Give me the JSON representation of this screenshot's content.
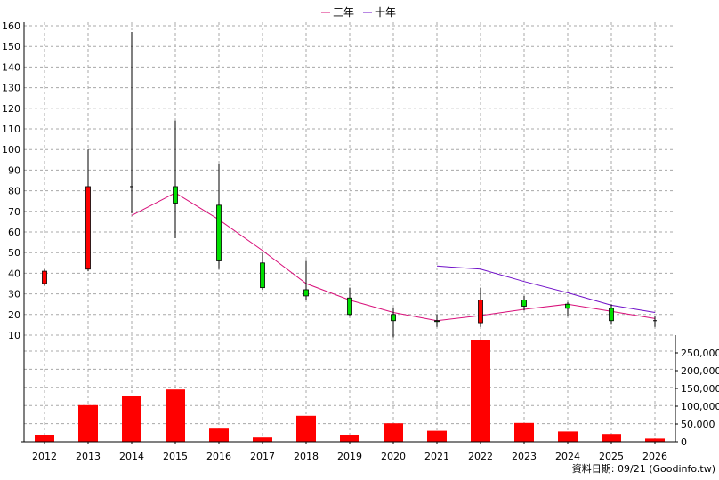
{
  "chart_data": {
    "type": "candlestick+line+bar",
    "categories": [
      "2012",
      "2013",
      "2014",
      "2015",
      "2016",
      "2017",
      "2018",
      "2019",
      "2020",
      "2021",
      "2022",
      "2023",
      "2024",
      "2025",
      "2026"
    ],
    "price_axis": {
      "ylim": [
        0,
        160
      ],
      "ticks": [
        10,
        20,
        30,
        40,
        50,
        60,
        70,
        80,
        90,
        100,
        110,
        120,
        130,
        140,
        150,
        160
      ]
    },
    "volume_axis": {
      "ylim": [
        0,
        300000
      ],
      "ticks": [
        0,
        50000,
        100000,
        150000,
        200000,
        250000
      ],
      "tick_labels": [
        "0",
        "50,000",
        "100,000",
        "150,000",
        "200,000",
        "250,000"
      ]
    },
    "candles": [
      {
        "year": "2012",
        "open": 41,
        "high": 42,
        "low": 34,
        "close": 35,
        "color": "red"
      },
      {
        "year": "2013",
        "open": 42,
        "high": 100,
        "low": 41,
        "close": 82,
        "color": "red"
      },
      {
        "year": "2014",
        "open": 82,
        "high": 157,
        "low": 69,
        "close": 82,
        "color": "black"
      },
      {
        "year": "2015",
        "open": 82,
        "high": 114,
        "low": 57,
        "close": 74,
        "color": "green"
      },
      {
        "year": "2016",
        "open": 73,
        "high": 93,
        "low": 42,
        "close": 46,
        "color": "green"
      },
      {
        "year": "2017",
        "open": 45,
        "high": 50,
        "low": 32,
        "close": 33,
        "color": "green"
      },
      {
        "year": "2018",
        "open": 32,
        "high": 46,
        "low": 27,
        "close": 29,
        "color": "green"
      },
      {
        "year": "2019",
        "open": 28,
        "high": 33,
        "low": 19,
        "close": 20,
        "color": "green"
      },
      {
        "year": "2020",
        "open": 20,
        "high": 23,
        "low": 9,
        "close": 17,
        "color": "green"
      },
      {
        "year": "2021",
        "open": 17,
        "high": 20,
        "low": 14,
        "close": 17,
        "color": "green"
      },
      {
        "year": "2022",
        "open": 16,
        "high": 33,
        "low": 14,
        "close": 27,
        "color": "red"
      },
      {
        "year": "2023",
        "open": 27,
        "high": 29,
        "low": 22,
        "close": 24,
        "color": "green"
      },
      {
        "year": "2024",
        "open": 25,
        "high": 26,
        "low": 19,
        "close": 23,
        "color": "green"
      },
      {
        "year": "2025",
        "open": 23,
        "high": 25,
        "low": 15,
        "close": 17,
        "color": "green"
      },
      {
        "year": "2026",
        "open": 17,
        "high": 19,
        "low": 14,
        "close": 17,
        "color": "black"
      }
    ],
    "series": [
      {
        "name": "三年",
        "color": "#d8107a",
        "x": [
          "2014",
          "2015",
          "2016",
          "2017",
          "2018",
          "2019",
          "2020",
          "2021",
          "2022",
          "2023",
          "2024",
          "2025",
          "2026"
        ],
        "values": [
          68,
          79,
          66,
          51,
          35,
          27,
          21,
          17,
          19.5,
          22.5,
          25,
          21.5,
          18
        ]
      },
      {
        "name": "十年",
        "color": "#7010c8",
        "x": [
          "2021",
          "2022",
          "2023",
          "2024",
          "2025",
          "2026"
        ],
        "values": [
          43.5,
          42,
          36,
          30.5,
          24.5,
          21
        ]
      }
    ],
    "volume": [
      20000,
      103000,
      130000,
      147000,
      37000,
      12000,
      73000,
      20000,
      52000,
      31000,
      287000,
      53000,
      29000,
      22000,
      9000
    ],
    "volume_color": "#ff0000",
    "grid": true,
    "legend_position": "top-center"
  },
  "source_text": "資料日期: 09/21  (Goodinfo.tw)"
}
